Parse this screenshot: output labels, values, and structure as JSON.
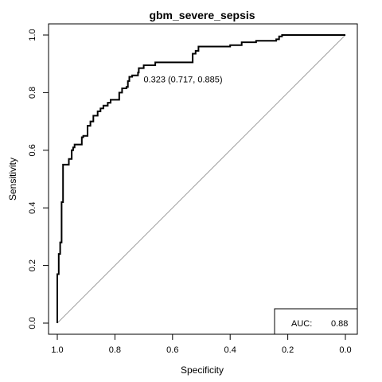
{
  "chart_data": {
    "type": "line",
    "title": "gbm_severe_sepsis",
    "xlabel": "Specificity",
    "ylabel": "Sensitivity",
    "xlim": [
      1.0,
      0.0
    ],
    "ylim": [
      0.0,
      1.0
    ],
    "x_reversed": true,
    "x_ticks": [
      "1.0",
      "0.8",
      "0.6",
      "0.4",
      "0.2",
      "0.0"
    ],
    "y_ticks": [
      "0.0",
      "0.2",
      "0.4",
      "0.6",
      "0.8",
      "1.0"
    ],
    "reference_line": {
      "from": [
        1.0,
        0.0
      ],
      "to": [
        0.0,
        1.0
      ],
      "color": "#a0a0a0"
    },
    "curve_color": "#000000",
    "series": [
      {
        "specificity": [
          1.0,
          1.0,
          0.995,
          0.995,
          0.99,
          0.99,
          0.985,
          0.985,
          0.98,
          0.98,
          0.975,
          0.975,
          0.96,
          0.96,
          0.95,
          0.95,
          0.945,
          0.945,
          0.94,
          0.94,
          0.915,
          0.915,
          0.91,
          0.91,
          0.895,
          0.895,
          0.885,
          0.885,
          0.875,
          0.875,
          0.86,
          0.86,
          0.85,
          0.85,
          0.84,
          0.84,
          0.825,
          0.825,
          0.815,
          0.815,
          0.785,
          0.785,
          0.775,
          0.775,
          0.76,
          0.76,
          0.755,
          0.755,
          0.75,
          0.75,
          0.74,
          0.74,
          0.72,
          0.72,
          0.717,
          0.717,
          0.7,
          0.7,
          0.66,
          0.66,
          0.62,
          0.62,
          0.53,
          0.53,
          0.52,
          0.52,
          0.51,
          0.51,
          0.4,
          0.4,
          0.36,
          0.36,
          0.31,
          0.31,
          0.24,
          0.24,
          0.23,
          0.23,
          0.22,
          0.22,
          0.0
        ],
        "sensitivity": [
          0.0,
          0.17,
          0.17,
          0.24,
          0.24,
          0.28,
          0.28,
          0.42,
          0.42,
          0.55,
          0.55,
          0.55,
          0.55,
          0.57,
          0.57,
          0.6,
          0.6,
          0.61,
          0.61,
          0.62,
          0.62,
          0.645,
          0.645,
          0.65,
          0.65,
          0.685,
          0.685,
          0.7,
          0.7,
          0.72,
          0.72,
          0.735,
          0.735,
          0.745,
          0.745,
          0.755,
          0.755,
          0.765,
          0.765,
          0.775,
          0.775,
          0.8,
          0.8,
          0.815,
          0.815,
          0.82,
          0.82,
          0.84,
          0.84,
          0.855,
          0.855,
          0.86,
          0.86,
          0.87,
          0.87,
          0.885,
          0.885,
          0.895,
          0.895,
          0.905,
          0.905,
          0.905,
          0.905,
          0.935,
          0.935,
          0.945,
          0.945,
          0.96,
          0.96,
          0.965,
          0.965,
          0.975,
          0.975,
          0.98,
          0.98,
          0.985,
          0.985,
          0.995,
          0.995,
          1.0,
          1.0
        ]
      }
    ],
    "threshold": {
      "specificity": 0.717,
      "sensitivity": 0.885,
      "label": "0.323 (0.717, 0.885)"
    },
    "auc": {
      "label": "AUC:",
      "value": "0.88",
      "position": "bottom-right"
    }
  }
}
